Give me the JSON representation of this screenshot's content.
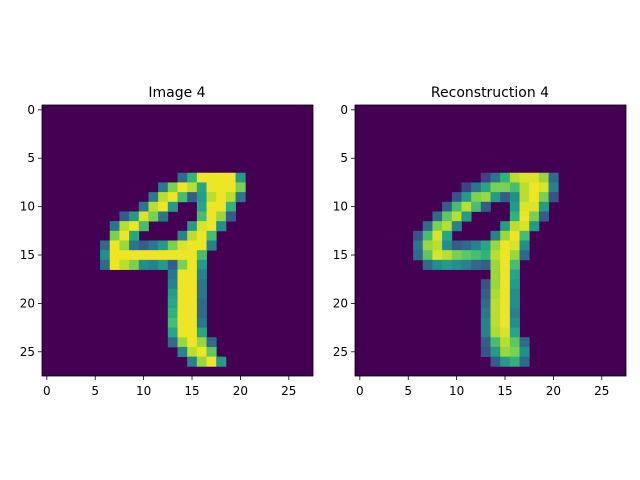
{
  "chart_data": [
    {
      "type": "heatmap",
      "title": "Image 4",
      "xlabel": "",
      "ylabel": "",
      "xlim": [
        -0.5,
        27.5
      ],
      "ylim": [
        27.5,
        -0.5
      ],
      "x_ticks": [
        0,
        5,
        10,
        15,
        20,
        25
      ],
      "y_ticks": [
        0,
        5,
        10,
        15,
        20,
        25
      ],
      "colormap": "viridis",
      "value_range": [
        0,
        1
      ],
      "grid": false,
      "rows": 28,
      "cols": 28,
      "cells": [
        [
          7,
          14,
          0.36
        ],
        [
          7,
          15,
          0.66
        ],
        [
          7,
          16,
          0.98
        ],
        [
          7,
          17,
          0.98
        ],
        [
          7,
          18,
          0.98
        ],
        [
          7,
          19,
          0.98
        ],
        [
          7,
          20,
          0.55
        ],
        [
          8,
          12,
          0.42
        ],
        [
          8,
          13,
          0.8
        ],
        [
          8,
          14,
          0.98
        ],
        [
          8,
          15,
          0.9
        ],
        [
          8,
          16,
          0.6
        ],
        [
          8,
          17,
          0.98
        ],
        [
          8,
          18,
          0.98
        ],
        [
          8,
          19,
          0.98
        ],
        [
          8,
          20,
          0.8
        ],
        [
          9,
          11,
          0.42
        ],
        [
          9,
          12,
          0.9
        ],
        [
          9,
          13,
          0.98
        ],
        [
          9,
          14,
          0.7
        ],
        [
          9,
          15,
          0.3
        ],
        [
          9,
          16,
          0.55
        ],
        [
          9,
          17,
          0.9
        ],
        [
          9,
          18,
          0.98
        ],
        [
          9,
          19,
          0.9
        ],
        [
          9,
          20,
          0.4
        ],
        [
          10,
          10,
          0.4
        ],
        [
          10,
          11,
          0.9
        ],
        [
          10,
          12,
          0.98
        ],
        [
          10,
          13,
          0.55
        ],
        [
          10,
          16,
          0.6
        ],
        [
          10,
          17,
          0.98
        ],
        [
          10,
          18,
          0.98
        ],
        [
          10,
          19,
          0.65
        ],
        [
          11,
          8,
          0.3
        ],
        [
          11,
          9,
          0.55
        ],
        [
          11,
          10,
          0.95
        ],
        [
          11,
          11,
          0.8
        ],
        [
          11,
          12,
          0.4
        ],
        [
          11,
          16,
          0.7
        ],
        [
          11,
          17,
          0.98
        ],
        [
          11,
          18,
          0.85
        ],
        [
          11,
          19,
          0.3
        ],
        [
          12,
          7,
          0.4
        ],
        [
          12,
          8,
          0.9
        ],
        [
          12,
          9,
          0.98
        ],
        [
          12,
          10,
          0.7
        ],
        [
          12,
          15,
          0.55
        ],
        [
          12,
          16,
          0.95
        ],
        [
          12,
          17,
          0.98
        ],
        [
          12,
          18,
          0.5
        ],
        [
          13,
          7,
          0.8
        ],
        [
          13,
          8,
          0.98
        ],
        [
          13,
          9,
          0.6
        ],
        [
          13,
          14,
          0.45
        ],
        [
          13,
          15,
          0.9
        ],
        [
          13,
          16,
          0.98
        ],
        [
          13,
          17,
          0.7
        ],
        [
          14,
          6,
          0.35
        ],
        [
          14,
          7,
          0.98
        ],
        [
          14,
          8,
          0.85
        ],
        [
          14,
          9,
          0.4
        ],
        [
          14,
          10,
          0.3
        ],
        [
          14,
          11,
          0.4
        ],
        [
          14,
          12,
          0.55
        ],
        [
          14,
          13,
          0.8
        ],
        [
          14,
          14,
          0.95
        ],
        [
          14,
          15,
          0.98
        ],
        [
          14,
          16,
          0.98
        ],
        [
          14,
          17,
          0.45
        ],
        [
          15,
          6,
          0.5
        ],
        [
          15,
          7,
          0.98
        ],
        [
          15,
          8,
          0.98
        ],
        [
          15,
          9,
          0.98
        ],
        [
          15,
          10,
          0.98
        ],
        [
          15,
          11,
          0.98
        ],
        [
          15,
          12,
          0.98
        ],
        [
          15,
          13,
          0.98
        ],
        [
          15,
          14,
          0.98
        ],
        [
          15,
          15,
          0.98
        ],
        [
          15,
          16,
          0.7
        ],
        [
          16,
          6,
          0.35
        ],
        [
          16,
          7,
          0.98
        ],
        [
          16,
          8,
          0.9
        ],
        [
          16,
          9,
          0.8
        ],
        [
          16,
          10,
          0.5
        ],
        [
          16,
          11,
          0.45
        ],
        [
          16,
          12,
          0.55
        ],
        [
          16,
          13,
          0.3
        ],
        [
          16,
          14,
          0.8
        ],
        [
          16,
          15,
          0.98
        ],
        [
          16,
          16,
          0.55
        ],
        [
          17,
          13,
          0.4
        ],
        [
          17,
          14,
          0.98
        ],
        [
          17,
          15,
          0.98
        ],
        [
          17,
          16,
          0.45
        ],
        [
          18,
          13,
          0.45
        ],
        [
          18,
          14,
          0.98
        ],
        [
          18,
          15,
          0.98
        ],
        [
          18,
          16,
          0.4
        ],
        [
          19,
          13,
          0.55
        ],
        [
          19,
          14,
          0.98
        ],
        [
          19,
          15,
          0.98
        ],
        [
          19,
          16,
          0.4
        ],
        [
          20,
          13,
          0.6
        ],
        [
          20,
          14,
          0.98
        ],
        [
          20,
          15,
          0.98
        ],
        [
          20,
          16,
          0.35
        ],
        [
          21,
          13,
          0.65
        ],
        [
          21,
          14,
          0.98
        ],
        [
          21,
          15,
          0.98
        ],
        [
          21,
          16,
          0.35
        ],
        [
          22,
          13,
          0.7
        ],
        [
          22,
          14,
          0.98
        ],
        [
          22,
          15,
          0.98
        ],
        [
          22,
          16,
          0.4
        ],
        [
          23,
          13,
          0.6
        ],
        [
          23,
          14,
          0.98
        ],
        [
          23,
          15,
          0.98
        ],
        [
          23,
          16,
          0.6
        ],
        [
          24,
          13,
          0.35
        ],
        [
          24,
          14,
          0.85
        ],
        [
          24,
          15,
          0.98
        ],
        [
          24,
          16,
          0.85
        ],
        [
          24,
          17,
          0.35
        ],
        [
          25,
          14,
          0.45
        ],
        [
          25,
          15,
          0.9
        ],
        [
          25,
          16,
          0.98
        ],
        [
          25,
          17,
          0.75
        ],
        [
          26,
          15,
          0.45
        ],
        [
          26,
          16,
          0.85
        ],
        [
          26,
          17,
          0.98
        ],
        [
          26,
          18,
          0.55
        ]
      ]
    },
    {
      "type": "heatmap",
      "title": "Reconstruction 4",
      "xlabel": "",
      "ylabel": "",
      "xlim": [
        -0.5,
        27.5
      ],
      "ylim": [
        27.5,
        -0.5
      ],
      "x_ticks": [
        0,
        5,
        10,
        15,
        20,
        25
      ],
      "y_ticks": [
        0,
        5,
        10,
        15,
        20,
        25
      ],
      "colormap": "viridis",
      "value_range": [
        0,
        1
      ],
      "grid": false,
      "rows": 28,
      "cols": 28,
      "cells": [
        [
          7,
          13,
          0.2
        ],
        [
          7,
          14,
          0.4
        ],
        [
          7,
          15,
          0.65
        ],
        [
          7,
          16,
          0.9
        ],
        [
          7,
          17,
          0.95
        ],
        [
          7,
          18,
          0.95
        ],
        [
          7,
          19,
          0.85
        ],
        [
          7,
          20,
          0.35
        ],
        [
          8,
          11,
          0.2
        ],
        [
          8,
          12,
          0.4
        ],
        [
          8,
          13,
          0.6
        ],
        [
          8,
          14,
          0.8
        ],
        [
          8,
          15,
          0.8
        ],
        [
          8,
          16,
          0.7
        ],
        [
          8,
          17,
          0.9
        ],
        [
          8,
          18,
          0.98
        ],
        [
          8,
          19,
          0.95
        ],
        [
          8,
          20,
          0.45
        ],
        [
          9,
          10,
          0.25
        ],
        [
          9,
          11,
          0.55
        ],
        [
          9,
          12,
          0.8
        ],
        [
          9,
          13,
          0.85
        ],
        [
          9,
          14,
          0.55
        ],
        [
          9,
          15,
          0.3
        ],
        [
          9,
          16,
          0.5
        ],
        [
          9,
          17,
          0.9
        ],
        [
          9,
          18,
          0.98
        ],
        [
          9,
          19,
          0.8
        ],
        [
          9,
          20,
          0.25
        ],
        [
          10,
          9,
          0.3
        ],
        [
          10,
          10,
          0.7
        ],
        [
          10,
          11,
          0.9
        ],
        [
          10,
          12,
          0.7
        ],
        [
          10,
          13,
          0.3
        ],
        [
          10,
          16,
          0.55
        ],
        [
          10,
          17,
          0.95
        ],
        [
          10,
          18,
          0.95
        ],
        [
          10,
          19,
          0.55
        ],
        [
          11,
          8,
          0.35
        ],
        [
          11,
          9,
          0.75
        ],
        [
          11,
          10,
          0.9
        ],
        [
          11,
          11,
          0.55
        ],
        [
          11,
          16,
          0.65
        ],
        [
          11,
          17,
          0.98
        ],
        [
          11,
          18,
          0.8
        ],
        [
          11,
          19,
          0.3
        ],
        [
          12,
          7,
          0.35
        ],
        [
          12,
          8,
          0.8
        ],
        [
          12,
          9,
          0.9
        ],
        [
          12,
          10,
          0.45
        ],
        [
          12,
          15,
          0.55
        ],
        [
          12,
          16,
          0.9
        ],
        [
          12,
          17,
          0.95
        ],
        [
          12,
          18,
          0.55
        ],
        [
          13,
          6,
          0.25
        ],
        [
          13,
          7,
          0.7
        ],
        [
          13,
          8,
          0.95
        ],
        [
          13,
          9,
          0.6
        ],
        [
          13,
          14,
          0.45
        ],
        [
          13,
          15,
          0.85
        ],
        [
          13,
          16,
          0.98
        ],
        [
          13,
          17,
          0.7
        ],
        [
          14,
          6,
          0.4
        ],
        [
          14,
          7,
          0.85
        ],
        [
          14,
          8,
          0.9
        ],
        [
          14,
          9,
          0.5
        ],
        [
          14,
          10,
          0.3
        ],
        [
          14,
          11,
          0.35
        ],
        [
          14,
          12,
          0.45
        ],
        [
          14,
          13,
          0.6
        ],
        [
          14,
          14,
          0.85
        ],
        [
          14,
          15,
          0.98
        ],
        [
          14,
          16,
          0.95
        ],
        [
          14,
          17,
          0.5
        ],
        [
          15,
          6,
          0.35
        ],
        [
          15,
          7,
          0.75
        ],
        [
          15,
          8,
          0.95
        ],
        [
          15,
          9,
          0.9
        ],
        [
          15,
          10,
          0.8
        ],
        [
          15,
          11,
          0.75
        ],
        [
          15,
          12,
          0.7
        ],
        [
          15,
          13,
          0.65
        ],
        [
          15,
          14,
          0.9
        ],
        [
          15,
          15,
          0.98
        ],
        [
          15,
          16,
          0.85
        ],
        [
          15,
          17,
          0.35
        ],
        [
          16,
          7,
          0.35
        ],
        [
          16,
          8,
          0.5
        ],
        [
          16,
          9,
          0.55
        ],
        [
          16,
          10,
          0.5
        ],
        [
          16,
          11,
          0.45
        ],
        [
          16,
          12,
          0.35
        ],
        [
          16,
          13,
          0.3
        ],
        [
          16,
          14,
          0.85
        ],
        [
          16,
          15,
          0.98
        ],
        [
          16,
          16,
          0.7
        ],
        [
          17,
          14,
          0.85
        ],
        [
          17,
          15,
          0.98
        ],
        [
          17,
          16,
          0.6
        ],
        [
          18,
          13,
          0.25
        ],
        [
          18,
          14,
          0.85
        ],
        [
          18,
          15,
          0.98
        ],
        [
          18,
          16,
          0.55
        ],
        [
          19,
          13,
          0.3
        ],
        [
          19,
          14,
          0.88
        ],
        [
          19,
          15,
          0.98
        ],
        [
          19,
          16,
          0.5
        ],
        [
          20,
          13,
          0.35
        ],
        [
          20,
          14,
          0.9
        ],
        [
          20,
          15,
          0.98
        ],
        [
          20,
          16,
          0.5
        ],
        [
          21,
          13,
          0.4
        ],
        [
          21,
          14,
          0.9
        ],
        [
          21,
          15,
          0.98
        ],
        [
          21,
          16,
          0.45
        ],
        [
          22,
          13,
          0.45
        ],
        [
          22,
          14,
          0.9
        ],
        [
          22,
          15,
          0.98
        ],
        [
          22,
          16,
          0.5
        ],
        [
          23,
          13,
          0.45
        ],
        [
          23,
          14,
          0.88
        ],
        [
          23,
          15,
          0.95
        ],
        [
          23,
          16,
          0.6
        ],
        [
          24,
          13,
          0.3
        ],
        [
          24,
          14,
          0.7
        ],
        [
          24,
          15,
          0.9
        ],
        [
          24,
          16,
          0.75
        ],
        [
          24,
          17,
          0.35
        ],
        [
          25,
          13,
          0.25
        ],
        [
          25,
          14,
          0.55
        ],
        [
          25,
          15,
          0.85
        ],
        [
          25,
          16,
          0.8
        ],
        [
          25,
          17,
          0.5
        ],
        [
          26,
          14,
          0.3
        ],
        [
          26,
          15,
          0.55
        ],
        [
          26,
          16,
          0.65
        ],
        [
          26,
          17,
          0.35
        ]
      ]
    }
  ]
}
